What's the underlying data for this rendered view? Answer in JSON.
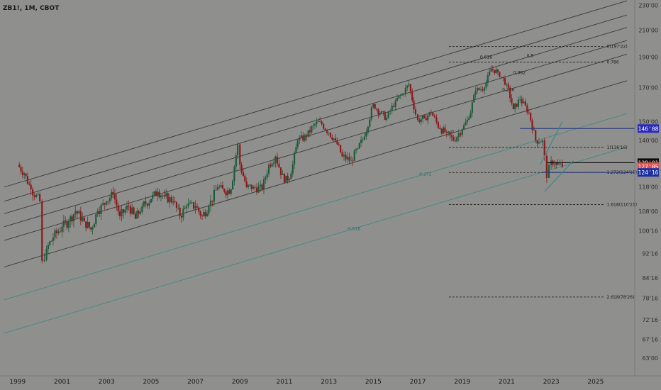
{
  "header": {
    "title": "ZB1!, 1M, CBOT"
  },
  "colors": {
    "background": "#8f8f8e",
    "candle_up": "#1f5a3a",
    "candle_down": "#8b1a1a",
    "channel": "#3a3a3a",
    "channel_teal": "#3f8a85",
    "fib_dash": "#1a1a1a",
    "zone_line": "#1f2f7a",
    "badge_blue": "#2a2ab8",
    "badge_black": "#0a0a0a",
    "badge_red": "#d9534f",
    "badge_blue_dark": "#1e2f9e"
  },
  "chart_data": {
    "type": "candlestick",
    "symbol": "ZB1!",
    "interval": "1M",
    "exchange": "CBOT",
    "x_axis": {
      "ticks": [
        "1999",
        "2001",
        "2003",
        "2005",
        "2007",
        "2009",
        "2011",
        "2013",
        "2015",
        "2017",
        "2019",
        "2021",
        "2023",
        "2025"
      ],
      "range": [
        1998.4,
        2026.6
      ]
    },
    "y_axis": {
      "ticks": [
        "230'00",
        "210'00",
        "190'00",
        "170'00",
        "150'00",
        "140'00",
        "118'00",
        "108'00",
        "100'16",
        "92'16",
        "84'16",
        "78'16",
        "72'16",
        "67'16",
        "63'00"
      ],
      "tick_values": [
        230,
        210,
        190,
        170,
        150,
        140,
        118,
        108,
        100.5,
        92.5,
        84.5,
        78.5,
        72.5,
        67.5,
        63
      ],
      "range": [
        61.2,
        232
      ],
      "scale": "log"
    },
    "price_badges": [
      {
        "label": "146'08",
        "value": 146.25,
        "style": "blue"
      },
      {
        "label": "129'01",
        "value": 129.03,
        "style": "black"
      },
      {
        "label": "127'05",
        "sub": "11d 8h",
        "value": 127.16,
        "style": "red"
      },
      {
        "label": "124'16",
        "value": 124.5,
        "style": "blue_dark"
      }
    ],
    "fib_levels": [
      {
        "label": "0(197'22)",
        "value": 197.7
      },
      {
        "label": "0.786",
        "value": 186.6
      },
      {
        "label": "1(136'16)",
        "value": 136.5
      },
      {
        "label": "1.272(124'15)",
        "value": 124.47
      },
      {
        "label": "1.618(110'21)",
        "value": 110.66
      },
      {
        "label": "2.618(78'26)",
        "value": 78.8
      }
    ],
    "channel_labels": [
      "0.618",
      "0.5",
      "0.382",
      "0.236",
      "0",
      "-0.272",
      "-0.618"
    ],
    "zone_levels": [
      146.25,
      129.03,
      124.5
    ],
    "ohlc_monthly_close": [
      {
        "t": 1999.0,
        "c": 128
      },
      {
        "t": 1999.3,
        "c": 124
      },
      {
        "t": 1999.6,
        "c": 117
      },
      {
        "t": 2000.0,
        "c": 112
      },
      {
        "t": 2000.1,
        "c": 90
      },
      {
        "t": 2000.3,
        "c": 94
      },
      {
        "t": 2000.6,
        "c": 98
      },
      {
        "t": 2001.0,
        "c": 102
      },
      {
        "t": 2001.3,
        "c": 104
      },
      {
        "t": 2001.6,
        "c": 108
      },
      {
        "t": 2002.0,
        "c": 104
      },
      {
        "t": 2002.3,
        "c": 101
      },
      {
        "t": 2002.6,
        "c": 108
      },
      {
        "t": 2003.0,
        "c": 112
      },
      {
        "t": 2003.3,
        "c": 115
      },
      {
        "t": 2003.6,
        "c": 106
      },
      {
        "t": 2004.0,
        "c": 110
      },
      {
        "t": 2004.3,
        "c": 105
      },
      {
        "t": 2004.6,
        "c": 110
      },
      {
        "t": 2005.0,
        "c": 113
      },
      {
        "t": 2005.3,
        "c": 116
      },
      {
        "t": 2005.6,
        "c": 114
      },
      {
        "t": 2006.0,
        "c": 112
      },
      {
        "t": 2006.3,
        "c": 106
      },
      {
        "t": 2006.6,
        "c": 110
      },
      {
        "t": 2007.0,
        "c": 110
      },
      {
        "t": 2007.3,
        "c": 106
      },
      {
        "t": 2007.6,
        "c": 110
      },
      {
        "t": 2008.0,
        "c": 118
      },
      {
        "t": 2008.3,
        "c": 116
      },
      {
        "t": 2008.6,
        "c": 117
      },
      {
        "t": 2008.9,
        "c": 138
      },
      {
        "t": 2009.0,
        "c": 128
      },
      {
        "t": 2009.3,
        "c": 118
      },
      {
        "t": 2009.6,
        "c": 118
      },
      {
        "t": 2010.0,
        "c": 117
      },
      {
        "t": 2010.3,
        "c": 128
      },
      {
        "t": 2010.6,
        "c": 132
      },
      {
        "t": 2011.0,
        "c": 120
      },
      {
        "t": 2011.3,
        "c": 124
      },
      {
        "t": 2011.6,
        "c": 140
      },
      {
        "t": 2012.0,
        "c": 142
      },
      {
        "t": 2012.3,
        "c": 148
      },
      {
        "t": 2012.6,
        "c": 150
      },
      {
        "t": 2013.0,
        "c": 144
      },
      {
        "t": 2013.3,
        "c": 140
      },
      {
        "t": 2013.6,
        "c": 132
      },
      {
        "t": 2014.0,
        "c": 130
      },
      {
        "t": 2014.3,
        "c": 136
      },
      {
        "t": 2014.6,
        "c": 142
      },
      {
        "t": 2015.0,
        "c": 160
      },
      {
        "t": 2015.3,
        "c": 155
      },
      {
        "t": 2015.6,
        "c": 152
      },
      {
        "t": 2016.0,
        "c": 162
      },
      {
        "t": 2016.3,
        "c": 166
      },
      {
        "t": 2016.6,
        "c": 172
      },
      {
        "t": 2016.9,
        "c": 154
      },
      {
        "t": 2017.0,
        "c": 151
      },
      {
        "t": 2017.3,
        "c": 152
      },
      {
        "t": 2017.6,
        "c": 155
      },
      {
        "t": 2018.0,
        "c": 146
      },
      {
        "t": 2018.3,
        "c": 144
      },
      {
        "t": 2018.6,
        "c": 140
      },
      {
        "t": 2019.0,
        "c": 146
      },
      {
        "t": 2019.3,
        "c": 152
      },
      {
        "t": 2019.6,
        "c": 168
      },
      {
        "t": 2020.0,
        "c": 170
      },
      {
        "t": 2020.3,
        "c": 182
      },
      {
        "t": 2020.6,
        "c": 180
      },
      {
        "t": 2021.0,
        "c": 172
      },
      {
        "t": 2021.3,
        "c": 157
      },
      {
        "t": 2021.6,
        "c": 163
      },
      {
        "t": 2022.0,
        "c": 155
      },
      {
        "t": 2022.3,
        "c": 140
      },
      {
        "t": 2022.6,
        "c": 140
      },
      {
        "t": 2022.8,
        "c": 122
      },
      {
        "t": 2023.0,
        "c": 130
      },
      {
        "t": 2023.3,
        "c": 128
      },
      {
        "t": 2023.5,
        "c": 127.16
      }
    ]
  }
}
